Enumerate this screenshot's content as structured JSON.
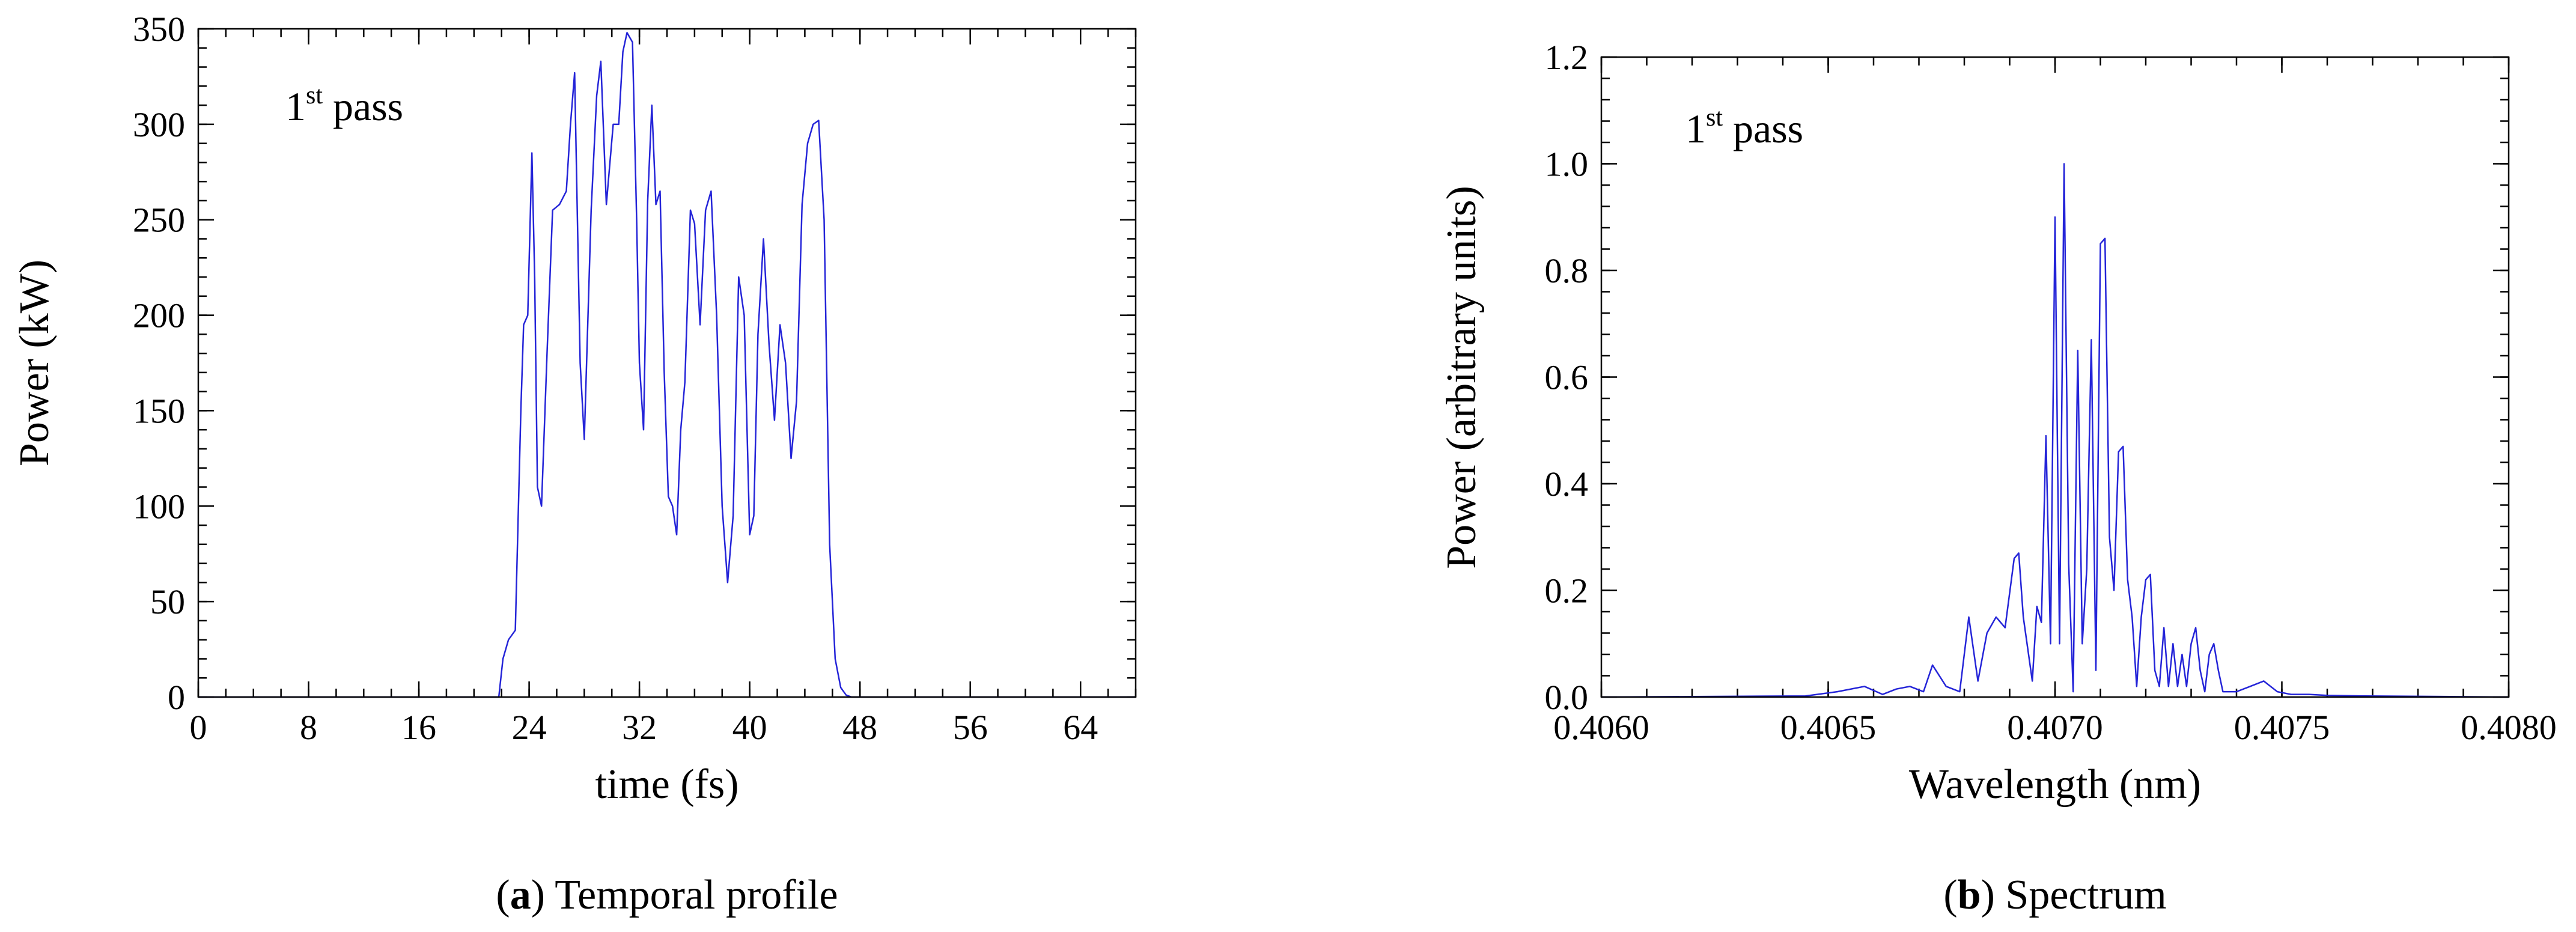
{
  "chart_data": [
    {
      "id": "a",
      "type": "line",
      "caption_letter": "a",
      "caption_text": " Temporal profile",
      "annotation": {
        "base": "1",
        "sup": "st",
        "rest": " pass"
      },
      "xlabel": "time (fs)",
      "ylabel": "Power (kW)",
      "xlim": [
        0,
        68
      ],
      "ylim": [
        0,
        350
      ],
      "xticks": [
        0,
        8,
        16,
        24,
        32,
        40,
        48,
        56,
        64
      ],
      "xtick_labels": [
        "0",
        "8",
        "16",
        "24",
        "32",
        "40",
        "48",
        "56",
        "64"
      ],
      "xminor_step": 2,
      "yticks": [
        0,
        50,
        100,
        150,
        200,
        250,
        300,
        350
      ],
      "ytick_labels": [
        "0",
        "50",
        "100",
        "150",
        "200",
        "250",
        "300",
        "350"
      ],
      "yminor_step": 10,
      "grid": false,
      "series": [
        {
          "color": "#2424d8",
          "x": [
            0,
            21.8,
            22.1,
            22.5,
            23.0,
            23.4,
            23.6,
            23.9,
            24.2,
            24.4,
            24.6,
            24.9,
            25.3,
            25.7,
            26.2,
            26.7,
            27.0,
            27.3,
            27.7,
            28.0,
            28.5,
            28.9,
            29.2,
            29.6,
            30.1,
            30.5,
            30.8,
            31.1,
            31.5,
            31.8,
            32.0,
            32.3,
            32.6,
            32.9,
            33.2,
            33.5,
            33.8,
            34.1,
            34.4,
            34.7,
            35.0,
            35.3,
            35.7,
            36.0,
            36.4,
            36.8,
            37.2,
            37.6,
            38.0,
            38.4,
            38.8,
            39.2,
            39.6,
            40.0,
            40.3,
            40.6,
            41.0,
            41.4,
            41.8,
            42.2,
            42.6,
            43.0,
            43.4,
            43.8,
            44.2,
            44.6,
            45.0,
            45.4,
            45.8,
            46.2,
            46.6,
            47.0,
            47.4,
            47.8,
            48.2,
            68
          ],
          "y": [
            0,
            0,
            20,
            30,
            35,
            150,
            195,
            200,
            285,
            220,
            110,
            100,
            180,
            255,
            258,
            265,
            300,
            327,
            175,
            135,
            255,
            315,
            333,
            258,
            300,
            300,
            338,
            348,
            343,
            250,
            175,
            140,
            260,
            310,
            258,
            265,
            170,
            105,
            100,
            85,
            140,
            165,
            255,
            248,
            195,
            255,
            265,
            200,
            100,
            60,
            95,
            220,
            200,
            85,
            95,
            190,
            240,
            185,
            145,
            195,
            175,
            125,
            155,
            258,
            290,
            300,
            302,
            250,
            80,
            20,
            5,
            1,
            0,
            0,
            0,
            0
          ]
        }
      ]
    },
    {
      "id": "b",
      "type": "line",
      "caption_letter": "b",
      "caption_text": " Spectrum",
      "annotation": {
        "base": "1",
        "sup": "st",
        "rest": " pass"
      },
      "xlabel": "Wavelength (nm)",
      "ylabel": "Power (arbitrary units)",
      "xlim": [
        0.406,
        0.408
      ],
      "ylim": [
        0,
        1.2
      ],
      "xticks": [
        0.406,
        0.4065,
        0.407,
        0.4075,
        0.408
      ],
      "xtick_labels": [
        "0.4060",
        "0.4065",
        "0.4070",
        "0.4075",
        "0.4080"
      ],
      "xminor_step": 0.0001,
      "yticks": [
        0,
        0.2,
        0.4,
        0.6,
        0.8,
        1.0,
        1.2
      ],
      "ytick_labels": [
        "0.0",
        "0.2",
        "0.4",
        "0.6",
        "0.8",
        "1.0",
        "1.2"
      ],
      "yminor_step": 0.04,
      "grid": false,
      "series": [
        {
          "color": "#2424d8",
          "x": [
            0.406,
            0.40645,
            0.40652,
            0.40658,
            0.40662,
            0.40665,
            0.40668,
            0.40671,
            0.40673,
            0.40676,
            0.40679,
            0.40681,
            0.40683,
            0.40685,
            0.40687,
            0.40689,
            0.40691,
            0.40692,
            0.40693,
            0.40695,
            0.40696,
            0.40697,
            0.40698,
            0.40699,
            0.407,
            0.40701,
            0.40702,
            0.40703,
            0.40704,
            0.40705,
            0.40706,
            0.40707,
            0.40708,
            0.40709,
            0.4071,
            0.40711,
            0.40712,
            0.40713,
            0.40714,
            0.40715,
            0.40716,
            0.40717,
            0.40718,
            0.40719,
            0.4072,
            0.40721,
            0.40722,
            0.40723,
            0.40724,
            0.40725,
            0.40726,
            0.40727,
            0.40728,
            0.40729,
            0.4073,
            0.40731,
            0.40732,
            0.40733,
            0.40734,
            0.40735,
            0.40736,
            0.40737,
            0.40738,
            0.4074,
            0.40743,
            0.40746,
            0.40749,
            0.40752,
            0.40756,
            0.4076,
            0.40768,
            0.408
          ],
          "y": [
            0,
            0.002,
            0.01,
            0.02,
            0.005,
            0.015,
            0.02,
            0.01,
            0.06,
            0.02,
            0.01,
            0.15,
            0.03,
            0.12,
            0.15,
            0.13,
            0.26,
            0.27,
            0.15,
            0.03,
            0.17,
            0.14,
            0.49,
            0.1,
            0.9,
            0.1,
            1.0,
            0.25,
            0.01,
            0.65,
            0.1,
            0.24,
            0.67,
            0.05,
            0.85,
            0.86,
            0.3,
            0.2,
            0.46,
            0.47,
            0.22,
            0.15,
            0.02,
            0.15,
            0.22,
            0.23,
            0.05,
            0.02,
            0.13,
            0.02,
            0.1,
            0.02,
            0.08,
            0.02,
            0.1,
            0.13,
            0.05,
            0.01,
            0.08,
            0.1,
            0.05,
            0.01,
            0.01,
            0.01,
            0.02,
            0.03,
            0.01,
            0.005,
            0.005,
            0.003,
            0.002,
            0
          ]
        }
      ]
    }
  ]
}
